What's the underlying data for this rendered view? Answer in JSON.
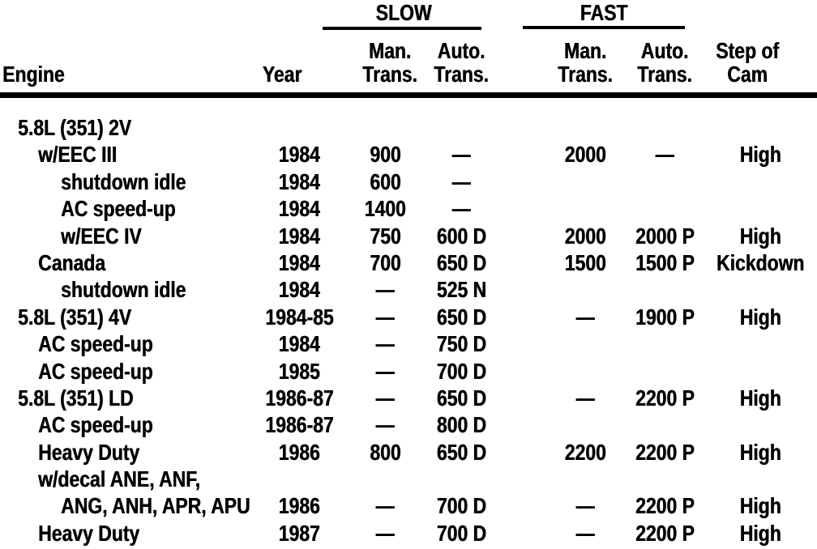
{
  "table": {
    "headers": {
      "engine": "Engine",
      "year": "Year",
      "slow_group": "SLOW",
      "fast_group": "FAST",
      "slow_man_line1": "Man.",
      "slow_man_line2": "Trans.",
      "slow_auto_line1": "Auto.",
      "slow_auto_line2": "Trans.",
      "fast_man_line1": "Man.",
      "fast_man_line2": "Trans.",
      "fast_auto_line1": "Auto.",
      "fast_auto_line2": "Trans.",
      "cam_line1": "Step of",
      "cam_line2": "Cam"
    },
    "rows": [
      {
        "engine": "5.8L (351) 2V",
        "indent": 0,
        "year": "",
        "slow_man": "",
        "slow_auto": "",
        "fast_man": "",
        "fast_auto": "",
        "cam": ""
      },
      {
        "engine": "w/EEC III",
        "indent": 1,
        "year": "1984",
        "slow_man": "900",
        "slow_auto": "—",
        "fast_man": "2000",
        "fast_auto": "—",
        "cam": "High"
      },
      {
        "engine": "shutdown idle",
        "indent": 2,
        "year": "1984",
        "slow_man": "600",
        "slow_auto": "—",
        "fast_man": "",
        "fast_auto": "",
        "cam": ""
      },
      {
        "engine": "AC speed-up",
        "indent": 2,
        "year": "1984",
        "slow_man": "1400",
        "slow_auto": "—",
        "fast_man": "",
        "fast_auto": "",
        "cam": ""
      },
      {
        "engine": "w/EEC IV",
        "indent": 2,
        "year": "1984",
        "slow_man": "750",
        "slow_auto": "600 D",
        "fast_man": "2000",
        "fast_auto": "2000 P",
        "cam": "High"
      },
      {
        "engine": "Canada",
        "indent": 1,
        "year": "1984",
        "slow_man": "700",
        "slow_auto": "650 D",
        "fast_man": "1500",
        "fast_auto": "1500 P",
        "cam": "Kickdown"
      },
      {
        "engine": "shutdown idle",
        "indent": 2,
        "year": "1984",
        "slow_man": "—",
        "slow_auto": "525 N",
        "fast_man": "",
        "fast_auto": "",
        "cam": ""
      },
      {
        "engine": "5.8L (351) 4V",
        "indent": 0,
        "year": "1984-85",
        "slow_man": "—",
        "slow_auto": "650 D",
        "fast_man": "—",
        "fast_auto": "1900 P",
        "cam": "High"
      },
      {
        "engine": "AC speed-up",
        "indent": 1,
        "year": "1984",
        "slow_man": "—",
        "slow_auto": "750 D",
        "fast_man": "",
        "fast_auto": "",
        "cam": ""
      },
      {
        "engine": "AC speed-up",
        "indent": 1,
        "year": "1985",
        "slow_man": "—",
        "slow_auto": "700 D",
        "fast_man": "",
        "fast_auto": "",
        "cam": ""
      },
      {
        "engine": "5.8L (351) LD",
        "indent": 0,
        "year": "1986-87",
        "slow_man": "—",
        "slow_auto": "650 D",
        "fast_man": "—",
        "fast_auto": "2200 P",
        "cam": "High"
      },
      {
        "engine": "AC speed-up",
        "indent": 1,
        "year": "1986-87",
        "slow_man": "—",
        "slow_auto": "800 D",
        "fast_man": "",
        "fast_auto": "",
        "cam": ""
      },
      {
        "engine": "Heavy Duty",
        "indent": 1,
        "year": "1986",
        "slow_man": "800",
        "slow_auto": "650 D",
        "fast_man": "2200",
        "fast_auto": "2200 P",
        "cam": "High"
      },
      {
        "engine": "w/decal ANE, ANF,",
        "indent": 1,
        "year": "",
        "slow_man": "",
        "slow_auto": "",
        "fast_man": "",
        "fast_auto": "",
        "cam": ""
      },
      {
        "engine": "ANG, ANH, APR, APU",
        "indent": 2,
        "year": "1986",
        "slow_man": "—",
        "slow_auto": "700 D",
        "fast_man": "—",
        "fast_auto": "2200 P",
        "cam": "High"
      },
      {
        "engine": "Heavy Duty",
        "indent": 1,
        "year": "1987",
        "slow_man": "—",
        "slow_auto": "700 D",
        "fast_man": "—",
        "fast_auto": "2200 P",
        "cam": "High"
      }
    ]
  }
}
